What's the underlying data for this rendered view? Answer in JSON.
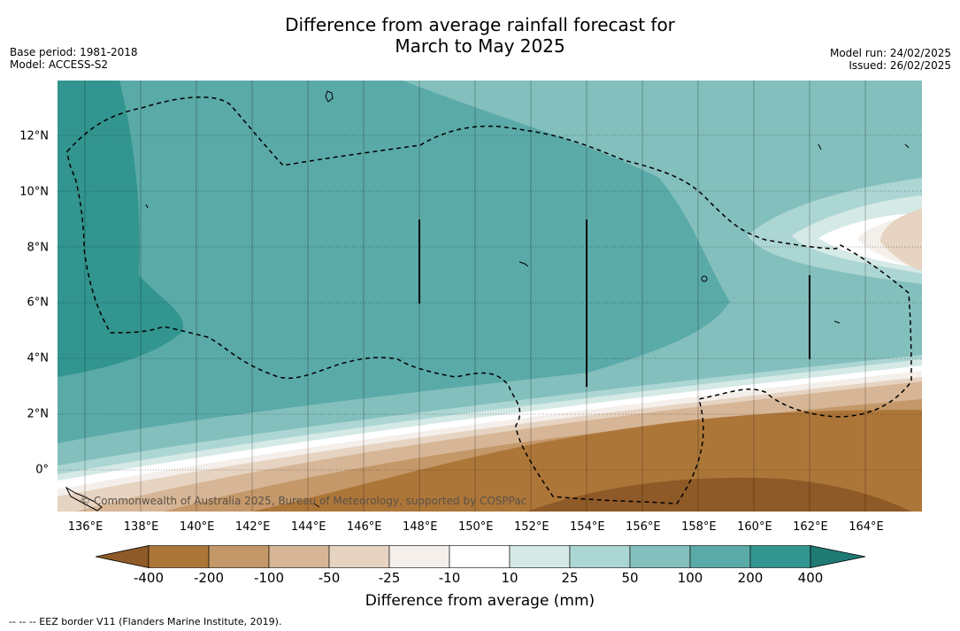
{
  "title_line1": "Difference from average rainfall forecast for",
  "title_line2": "March to May 2025",
  "meta_left": {
    "base_period": "Base period: 1981-2018",
    "model": "Model: ACCESS-S2"
  },
  "meta_right": {
    "model_run": "Model run: 24/02/2025",
    "issued": "Issued: 26/02/2025"
  },
  "map": {
    "copyright": "© Commonwealth of Australia 2025, Bureau of Meteorology, supported by COSPPac",
    "x_ticks": [
      "136°E",
      "138°E",
      "140°E",
      "142°E",
      "144°E",
      "146°E",
      "148°E",
      "150°E",
      "152°E",
      "154°E",
      "156°E",
      "158°E",
      "160°E",
      "162°E",
      "164°E"
    ],
    "y_ticks": [
      "12°N",
      "10°N",
      "8°N",
      "6°N",
      "4°N",
      "2°N",
      "0°"
    ],
    "lon_range": [
      135,
      166
    ],
    "lat_range": [
      -1.5,
      14
    ]
  },
  "colorbar": {
    "label": "Difference from average (mm)",
    "ticks": [
      "-400",
      "-200",
      "-100",
      "-50",
      "-25",
      "-10",
      "10",
      "25",
      "50",
      "100",
      "200",
      "400"
    ],
    "colors": [
      "#8e5a27",
      "#ad7639",
      "#c49869",
      "#d6b696",
      "#e6d3c1",
      "#f4efea",
      "#ffffff",
      "#d5e9e6",
      "#acd6d3",
      "#83bfbd",
      "#5aaaa8",
      "#32958f",
      "#1f7a74"
    ]
  },
  "footnote": "-- -- -- EEZ border V11 (Flanders Marine Institute, 2019)."
}
